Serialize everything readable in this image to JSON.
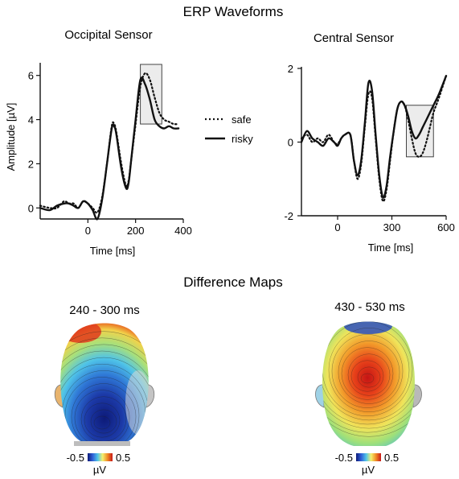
{
  "figure": {
    "title": "ERP Waveforms",
    "maps_title": "Difference Maps"
  },
  "chart_data": [
    {
      "type": "line",
      "title": "Occipital Sensor",
      "xlabel": "Time [ms]",
      "ylabel": "Amplitude [µV]",
      "xlim": [
        -200,
        400
      ],
      "ylim": [
        -0.5,
        6.5
      ],
      "xticks": [
        0,
        200,
        400
      ],
      "yticks": [
        0,
        2,
        4,
        6
      ],
      "legend": "right",
      "highlight": {
        "x": [
          220,
          310
        ],
        "y": [
          3.8,
          6.5
        ]
      },
      "series": [
        {
          "name": "safe",
          "style": "dotted",
          "x": [
            -200,
            -160,
            -130,
            -100,
            -80,
            -60,
            -40,
            -20,
            0,
            20,
            40,
            60,
            80,
            100,
            110,
            120,
            140,
            160,
            170,
            180,
            200,
            220,
            240,
            260,
            280,
            300,
            320,
            340,
            360,
            380
          ],
          "values": [
            0.1,
            0.0,
            0.0,
            0.3,
            0.2,
            0.2,
            0.0,
            0.3,
            0.2,
            0.0,
            -0.2,
            0.5,
            2.0,
            3.7,
            3.8,
            3.4,
            2.0,
            1.0,
            1.2,
            2.0,
            3.8,
            5.5,
            6.1,
            5.8,
            5.0,
            4.3,
            4.0,
            3.9,
            3.8,
            3.8
          ]
        },
        {
          "name": "risky",
          "style": "solid",
          "x": [
            -200,
            -160,
            -130,
            -100,
            -80,
            -60,
            -40,
            -20,
            0,
            20,
            40,
            60,
            80,
            100,
            110,
            120,
            140,
            160,
            170,
            180,
            200,
            220,
            240,
            260,
            280,
            300,
            320,
            340,
            360,
            380
          ],
          "values": [
            0.0,
            -0.1,
            0.1,
            0.2,
            0.2,
            0.1,
            0.0,
            0.3,
            0.2,
            -0.1,
            -0.5,
            0.4,
            2.0,
            3.6,
            3.7,
            3.3,
            1.8,
            0.9,
            1.1,
            2.0,
            4.0,
            5.8,
            5.6,
            4.9,
            4.0,
            3.7,
            3.6,
            3.7,
            3.6,
            3.6
          ]
        }
      ]
    },
    {
      "type": "line",
      "title": "Central Sensor",
      "xlabel": "Time [ms]",
      "ylabel": "",
      "xlim": [
        -200,
        600
      ],
      "ylim": [
        -2,
        2
      ],
      "xticks": [
        0,
        300,
        600
      ],
      "yticks": [
        -2,
        0,
        2
      ],
      "highlight": {
        "x": [
          380,
          530
        ],
        "y": [
          -0.4,
          1.0
        ]
      },
      "series": [
        {
          "name": "safe",
          "style": "dotted",
          "x": [
            -200,
            -170,
            -140,
            -110,
            -80,
            -50,
            -20,
            0,
            20,
            40,
            70,
            90,
            110,
            130,
            150,
            170,
            190,
            210,
            230,
            250,
            270,
            290,
            310,
            330,
            350,
            370,
            390,
            410,
            430,
            450,
            470,
            490,
            510,
            530,
            560,
            600
          ],
          "values": [
            0.1,
            0.2,
            0.0,
            0.1,
            0.0,
            0.2,
            0.0,
            -0.05,
            0.1,
            0.2,
            0.2,
            -0.5,
            -1.0,
            -0.6,
            0.4,
            1.3,
            1.2,
            0.1,
            -1.0,
            -1.6,
            -1.3,
            -0.5,
            0.3,
            0.9,
            1.1,
            1.0,
            0.6,
            0.1,
            -0.3,
            -0.4,
            -0.3,
            0.0,
            0.4,
            0.8,
            1.2,
            1.8
          ]
        },
        {
          "name": "risky",
          "style": "solid",
          "x": [
            -200,
            -170,
            -140,
            -110,
            -80,
            -50,
            -20,
            0,
            20,
            40,
            70,
            90,
            110,
            130,
            150,
            170,
            190,
            210,
            230,
            250,
            270,
            290,
            310,
            330,
            350,
            370,
            390,
            410,
            430,
            450,
            470,
            490,
            510,
            530,
            560,
            600
          ],
          "values": [
            0.0,
            0.3,
            0.1,
            0.0,
            -0.1,
            0.1,
            0.0,
            -0.1,
            0.1,
            0.2,
            0.2,
            -0.5,
            -0.9,
            -0.5,
            0.5,
            1.6,
            1.4,
            0.2,
            -0.9,
            -1.5,
            -1.2,
            -0.4,
            0.3,
            0.9,
            1.1,
            1.0,
            0.7,
            0.3,
            0.1,
            0.2,
            0.4,
            0.6,
            0.8,
            1.0,
            1.3,
            1.8
          ]
        }
      ]
    },
    {
      "type": "heatmap",
      "title": "240 - 300 ms",
      "colorbar": {
        "min": "-0.5",
        "max": "0.5",
        "unit": "µV",
        "colors": [
          "#0d1a78",
          "#2f5fd6",
          "#4fc3e8",
          "#f4f070",
          "#f08a24",
          "#c81818"
        ]
      }
    },
    {
      "type": "heatmap",
      "title": "430 - 530 ms",
      "colorbar": {
        "min": "-0.5",
        "max": "0.5",
        "unit": "µV",
        "colors": [
          "#0d1a78",
          "#2f5fd6",
          "#4fc3e8",
          "#f4f070",
          "#f08a24",
          "#c81818"
        ]
      }
    }
  ]
}
